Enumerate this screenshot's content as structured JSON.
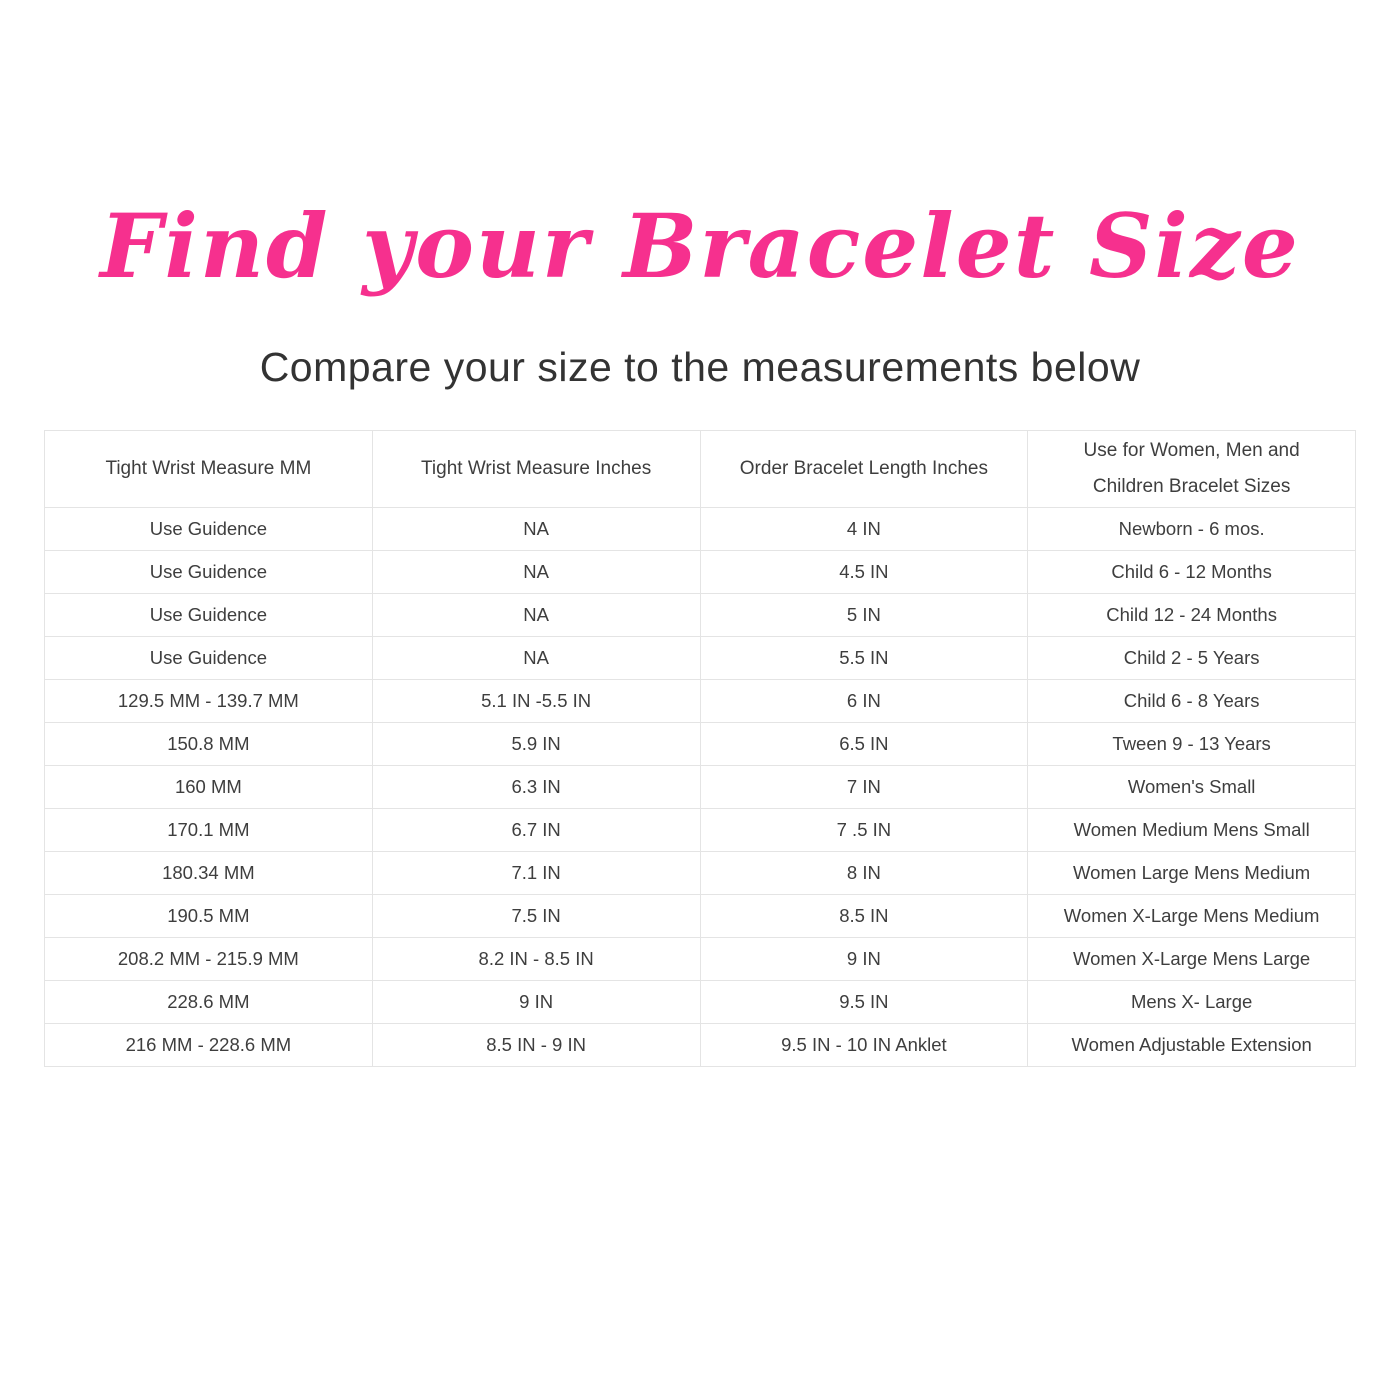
{
  "page": {
    "title": "Find your Bracelet Size",
    "subtitle": "Compare your size to the measurements below"
  },
  "colors": {
    "title_pink": "#f6308e",
    "body_text": "#3e3e3e",
    "table_border": "#e4e4e4",
    "background": "#ffffff"
  },
  "chart_data": {
    "type": "table",
    "title": "Find your Bracelet Size",
    "subtitle": "Compare your size to the measurements below",
    "columns": [
      "Tight Wrist Measure MM",
      "Tight Wrist Measure Inches",
      "Order Bracelet Length Inches",
      "Use for Women, Men and Children Bracelet Sizes"
    ],
    "rows": [
      [
        "Use Guidence",
        "NA",
        "4 IN",
        "Newborn - 6 mos."
      ],
      [
        "Use Guidence",
        "NA",
        "4.5 IN",
        "Child 6 - 12 Months"
      ],
      [
        "Use Guidence",
        "NA",
        "5 IN",
        "Child 12 - 24 Months"
      ],
      [
        "Use Guidence",
        "NA",
        "5.5 IN",
        "Child 2 - 5 Years"
      ],
      [
        "129.5 MM - 139.7 MM",
        "5.1 IN -5.5 IN",
        "6 IN",
        "Child 6 - 8 Years"
      ],
      [
        "150.8 MM",
        "5.9 IN",
        "6.5 IN",
        "Tween 9 - 13 Years"
      ],
      [
        "160 MM",
        "6.3 IN",
        "7 IN",
        "Women's Small"
      ],
      [
        "170.1 MM",
        "6.7 IN",
        "7 .5 IN",
        "Women Medium Mens Small"
      ],
      [
        "180.34 MM",
        "7.1 IN",
        "8 IN",
        "Women Large Mens Medium"
      ],
      [
        "190.5 MM",
        "7.5 IN",
        "8.5 IN",
        "Women X-Large Mens Medium"
      ],
      [
        "208.2 MM - 215.9 MM",
        "8.2 IN - 8.5 IN",
        "9 IN",
        "Women X-Large Mens Large"
      ],
      [
        "228.6 MM",
        "9 IN",
        "9.5 IN",
        "Mens X- Large"
      ],
      [
        "216 MM - 228.6 MM",
        "8.5 IN - 9 IN",
        "9.5 IN - 10 IN Anklet",
        "Women Adjustable Extension"
      ]
    ]
  }
}
